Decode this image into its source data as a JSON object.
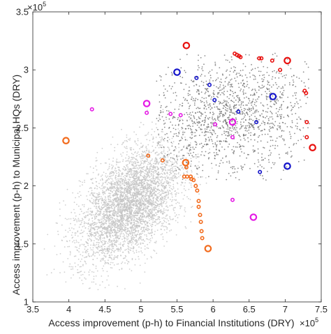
{
  "chart_data": {
    "type": "scatter",
    "title": "",
    "xlabel": "Access improvement (p-h) to Financial Institutions (DRY)",
    "ylabel": "Access improvement (p-h) to Municipal HQs (DRY)",
    "x_exponent": "×10",
    "x_exponent_power": "5",
    "y_exponent": "×10",
    "y_exponent_power": "5",
    "x_unit_scale": 100000,
    "y_unit_scale": 100000,
    "xlim": [
      3.5,
      7.5
    ],
    "ylim": [
      1,
      3.5
    ],
    "x_ticks": [
      3.5,
      4,
      4.5,
      5,
      5.5,
      6,
      6.5,
      7,
      7.5
    ],
    "x_tick_labels": [
      "3.5",
      "4",
      "4.5",
      "5",
      "5.5",
      "6",
      "6.5",
      "7",
      "7.5"
    ],
    "y_ticks": [
      1,
      1.5,
      2,
      2.5,
      3,
      3.5
    ],
    "y_tick_labels": [
      "1",
      "1.5",
      "2",
      "2.5",
      "3",
      "3.5"
    ],
    "grid": false,
    "legend": "none",
    "colors": {
      "background_points": "#bdbdbd",
      "upper_cluster_points": "#6b6b6b",
      "red": "#e8110f",
      "blue": "#1313c9",
      "magenta": "#e51ae5",
      "orange": "#f26b1d",
      "axis": "#262626"
    },
    "background_clouds": [
      {
        "name": "lower-cloud",
        "cx": 4.85,
        "cy": 1.85,
        "sx": 0.36,
        "sy": 0.25,
        "rho": 0.5,
        "n": 4200,
        "color": "#c3c3c3",
        "xmin": 3.6,
        "xmax": 6.0,
        "ymin": 1.1,
        "ymax": 2.75
      },
      {
        "name": "upper-cloud",
        "cx": 6.25,
        "cy": 2.6,
        "sx": 0.55,
        "sy": 0.25,
        "rho": 0.15,
        "n": 1400,
        "color": "#707070",
        "xmin": 5.2,
        "xmax": 7.35,
        "ymin": 2.05,
        "ymax": 3.15
      }
    ],
    "series": [
      {
        "color": "#e8110f",
        "points": [
          {
            "x": 5.63,
            "y": 3.21,
            "size": "large"
          },
          {
            "x": 6.3,
            "y": 3.14,
            "size": "small"
          },
          {
            "x": 6.33,
            "y": 3.13,
            "size": "small"
          },
          {
            "x": 6.36,
            "y": 3.12,
            "size": "small"
          },
          {
            "x": 6.38,
            "y": 3.11,
            "size": "small"
          },
          {
            "x": 6.64,
            "y": 3.1,
            "size": "small"
          },
          {
            "x": 6.67,
            "y": 3.1,
            "size": "small"
          },
          {
            "x": 6.82,
            "y": 3.08,
            "size": "small"
          },
          {
            "x": 7.03,
            "y": 3.08,
            "size": "large"
          },
          {
            "x": 6.93,
            "y": 3.0,
            "size": "small"
          },
          {
            "x": 7.27,
            "y": 2.82,
            "size": "small"
          },
          {
            "x": 7.29,
            "y": 2.8,
            "size": "small"
          },
          {
            "x": 7.3,
            "y": 2.55,
            "size": "small"
          },
          {
            "x": 7.3,
            "y": 2.42,
            "size": "small"
          },
          {
            "x": 7.38,
            "y": 2.33,
            "size": "large"
          }
        ]
      },
      {
        "color": "#1313c9",
        "points": [
          {
            "x": 5.5,
            "y": 2.98,
            "size": "large"
          },
          {
            "x": 5.77,
            "y": 2.93,
            "size": "small"
          },
          {
            "x": 5.95,
            "y": 2.87,
            "size": "small"
          },
          {
            "x": 6.02,
            "y": 2.74,
            "size": "small"
          },
          {
            "x": 6.35,
            "y": 2.64,
            "size": "small"
          },
          {
            "x": 6.6,
            "y": 2.55,
            "size": "small"
          },
          {
            "x": 6.83,
            "y": 2.77,
            "size": "large"
          },
          {
            "x": 7.03,
            "y": 2.17,
            "size": "large"
          },
          {
            "x": 6.65,
            "y": 2.12,
            "size": "small"
          }
        ]
      },
      {
        "color": "#e51ae5",
        "points": [
          {
            "x": 4.32,
            "y": 2.66,
            "size": "small"
          },
          {
            "x": 5.08,
            "y": 2.71,
            "size": "large"
          },
          {
            "x": 5.08,
            "y": 2.63,
            "size": "small"
          },
          {
            "x": 5.41,
            "y": 2.62,
            "size": "small"
          },
          {
            "x": 5.55,
            "y": 2.61,
            "size": "small"
          },
          {
            "x": 6.03,
            "y": 2.53,
            "size": "small"
          },
          {
            "x": 6.27,
            "y": 2.55,
            "size": "large"
          },
          {
            "x": 6.27,
            "y": 2.42,
            "size": "small"
          },
          {
            "x": 6.27,
            "y": 1.88,
            "size": "small"
          },
          {
            "x": 6.56,
            "y": 1.73,
            "size": "large"
          }
        ]
      },
      {
        "color": "#f26b1d",
        "points": [
          {
            "x": 3.96,
            "y": 2.39,
            "size": "large"
          },
          {
            "x": 5.1,
            "y": 2.26,
            "size": "small"
          },
          {
            "x": 5.3,
            "y": 2.22,
            "size": "small"
          },
          {
            "x": 5.62,
            "y": 2.2,
            "size": "large"
          },
          {
            "x": 5.63,
            "y": 2.16,
            "size": "small"
          },
          {
            "x": 5.6,
            "y": 2.08,
            "size": "small"
          },
          {
            "x": 5.64,
            "y": 2.08,
            "size": "small"
          },
          {
            "x": 5.69,
            "y": 2.08,
            "size": "small"
          },
          {
            "x": 5.7,
            "y": 2.06,
            "size": "small"
          },
          {
            "x": 5.73,
            "y": 2.05,
            "size": "small"
          },
          {
            "x": 5.76,
            "y": 2.0,
            "size": "small"
          },
          {
            "x": 5.78,
            "y": 1.96,
            "size": "small"
          },
          {
            "x": 5.8,
            "y": 1.87,
            "size": "small"
          },
          {
            "x": 5.8,
            "y": 1.82,
            "size": "small"
          },
          {
            "x": 5.82,
            "y": 1.75,
            "size": "small"
          },
          {
            "x": 5.83,
            "y": 1.69,
            "size": "small"
          },
          {
            "x": 5.84,
            "y": 1.61,
            "size": "small"
          },
          {
            "x": 5.85,
            "y": 1.55,
            "size": "small"
          },
          {
            "x": 5.93,
            "y": 1.46,
            "size": "large"
          }
        ]
      }
    ]
  }
}
